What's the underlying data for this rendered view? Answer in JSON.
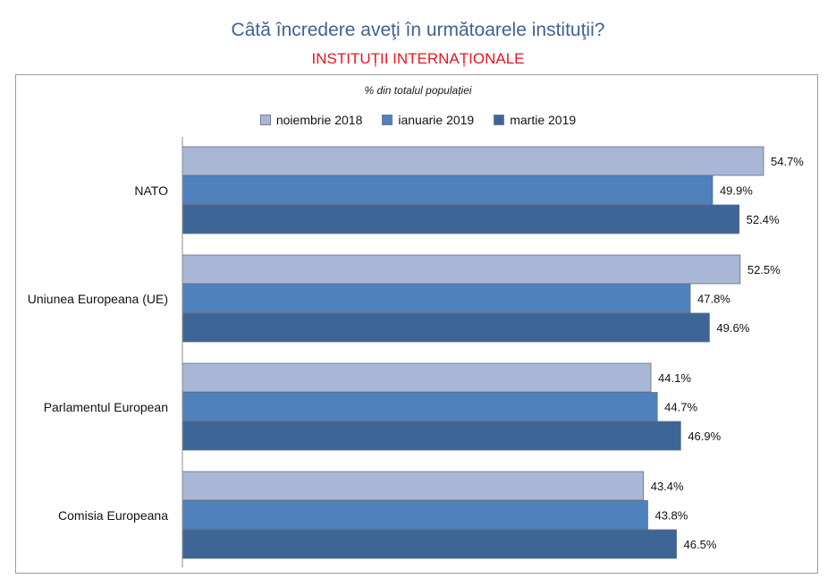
{
  "header": {
    "title": "Câtă încredere aveţi în următoarele instituţii?",
    "subtitle": "INSTITUȚII INTERNAȚIONALE"
  },
  "chart_data": {
    "type": "bar",
    "orientation": "horizontal",
    "note": "% din totalul populației",
    "categories": [
      "NATO",
      "Uniunea Europeana (UE)",
      "Parlamentul European",
      "Comisia Europeana"
    ],
    "series": [
      {
        "name": "noiembrie 2018",
        "color": "#a9b7d6",
        "values": [
          54.7,
          52.5,
          44.1,
          43.4
        ],
        "labels": [
          "54.7%",
          "52.5%",
          "44.1%",
          "43.4%"
        ]
      },
      {
        "name": "ianuarie 2019",
        "color": "#4f81bd",
        "values": [
          49.9,
          47.8,
          44.7,
          43.8
        ],
        "labels": [
          "49.9%",
          "47.8%",
          "44.7%",
          "43.8%"
        ]
      },
      {
        "name": "martie 2019",
        "color": "#3d6696",
        "values": [
          52.4,
          49.6,
          46.9,
          46.5
        ],
        "labels": [
          "52.4%",
          "49.6%",
          "46.9%",
          "46.5%"
        ]
      }
    ],
    "legend_position": "top-center",
    "grid": false
  }
}
